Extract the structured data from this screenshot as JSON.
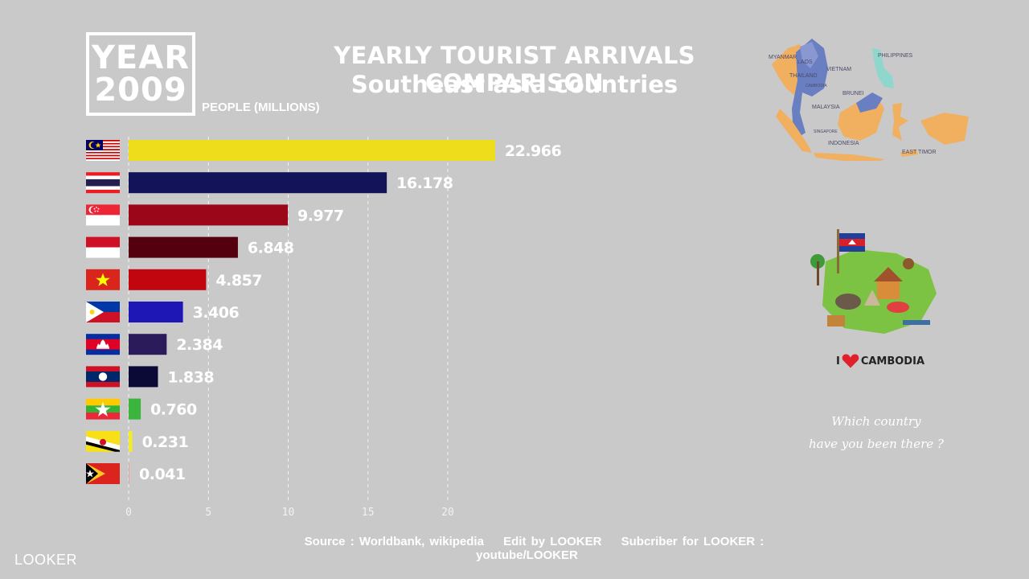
{
  "header": {
    "year_word": "YEAR",
    "year_value": "2009",
    "unit_label": "PEOPLE (MILLIONS)"
  },
  "chart_data": {
    "type": "bar",
    "orientation": "horizontal",
    "title": "YEARLY TOURIST ARRIVALS COMPARISON",
    "subtitle": "Southeast asia countries",
    "xlabel": "PEOPLE (MILLIONS)",
    "xlim": [
      0,
      25
    ],
    "xticks": [
      0,
      5,
      10,
      15,
      20
    ],
    "grid": true,
    "categories": [
      "Malaysia",
      "Thailand",
      "Singapore",
      "Indonesia",
      "Vietnam",
      "Philippines",
      "Cambodia",
      "Laos",
      "Myanmar",
      "Brunei",
      "East Timor"
    ],
    "values": [
      22.966,
      16.178,
      9.977,
      6.848,
      4.857,
      3.406,
      2.384,
      1.838,
      0.76,
      0.231,
      0.041
    ],
    "labels": [
      "22.966",
      "16.178",
      "9.977",
      "6.848",
      "4.857",
      "3.406",
      "2.384",
      "1.838",
      "0.760",
      "0.231",
      "0.041"
    ],
    "colors": [
      "#eedd1a",
      "#13135a",
      "#9b0618",
      "#55000e",
      "#c20610",
      "#1f17b5",
      "#2b1b5a",
      "#0b0a36",
      "#3bb53e",
      "#f2ec2a",
      "#e8a3a3"
    ],
    "flags": [
      "malaysia",
      "thailand",
      "singapore",
      "indonesia",
      "vietnam",
      "philippines",
      "cambodia",
      "laos",
      "myanmar",
      "brunei",
      "east-timor"
    ]
  },
  "map": {
    "labels": {
      "myanmar": "MYANMAR",
      "laos": "LAOS",
      "thailand": "THAILAND",
      "cambodia": "CAMBODIA",
      "vietnam": "VIETNAM",
      "philippines": "PHILIPPINES",
      "brunei": "BRUNEI",
      "malaysia": "MALAYSIA",
      "singapore": "SINGAPORE",
      "indonesia": "INDONESIA",
      "east_timor": "EAST TIMOR"
    }
  },
  "illustration": {
    "love_i": "I",
    "love_country": "CAMBODIA"
  },
  "question": {
    "line1": "Which country",
    "line2": "have you been there ?"
  },
  "footer": {
    "source": "Source : Worldbank, wikipedia",
    "edit": "Edit by LOOKER",
    "subscribe": "Subcriber for LOOKER : youtube/LOOKER"
  },
  "watermark": "LOOKER",
  "colors": {
    "background": "#c9c9c9",
    "text": "#ffffff",
    "map_land": "#f0b060",
    "map_indochina": "#6a7ec2",
    "map_philippines": "#8fd6cc"
  }
}
